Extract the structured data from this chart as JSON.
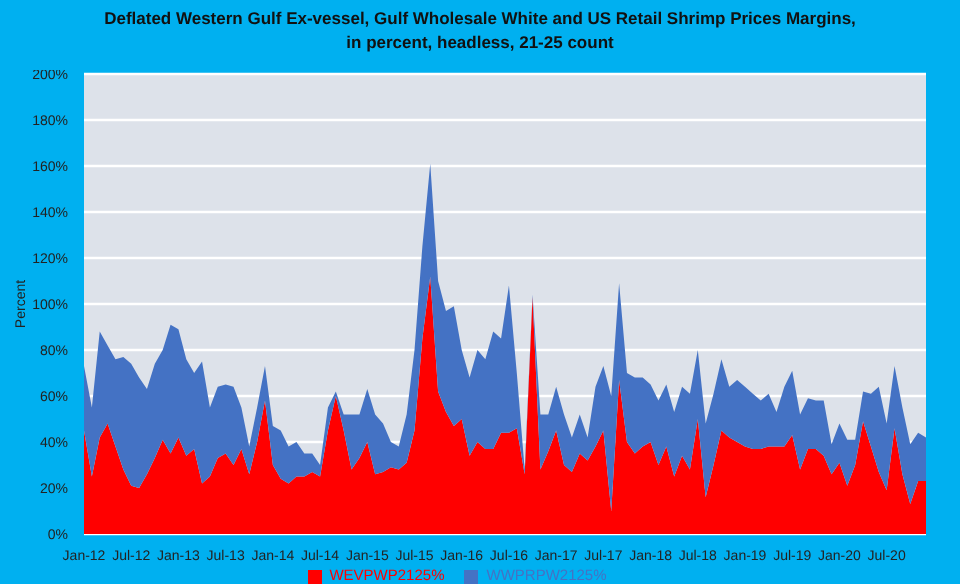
{
  "chart_data": {
    "type": "area",
    "title": "Deflated Western Gulf Ex-vessel, Gulf Wholesale White and US Retail Shrimp Prices Margins,\nin percent, headless, 21-25 count",
    "ylabel": "Percent",
    "categories": [
      "Jan-12",
      null,
      null,
      null,
      null,
      null,
      "Jul-12",
      null,
      null,
      null,
      null,
      null,
      "Jan-13",
      null,
      null,
      null,
      null,
      null,
      "Jul-13",
      null,
      null,
      null,
      null,
      null,
      "Jan-14",
      null,
      null,
      null,
      null,
      null,
      "Jul-14",
      null,
      null,
      null,
      null,
      null,
      "Jan-15",
      null,
      null,
      null,
      null,
      null,
      "Jul-15",
      null,
      null,
      null,
      null,
      null,
      "Jan-16",
      null,
      null,
      null,
      null,
      null,
      "Jul-16",
      null,
      null,
      null,
      null,
      null,
      "Jan-17",
      null,
      null,
      null,
      null,
      null,
      "Jul-17",
      null,
      null,
      null,
      null,
      null,
      "Jan-18",
      null,
      null,
      null,
      null,
      null,
      "Jul-18",
      null,
      null,
      null,
      null,
      null,
      "Jan-19",
      null,
      null,
      null,
      null,
      null,
      "Jul-19",
      null,
      null,
      null,
      null,
      null,
      "Jan-20",
      null,
      null,
      null,
      null,
      null,
      "Jul-20",
      null,
      null,
      null,
      null,
      null
    ],
    "stacked": true,
    "series": [
      {
        "name": "WEVPWP2125%",
        "color": "#ff0000",
        "values": [
          45,
          25,
          42,
          48,
          38,
          28,
          21,
          20,
          26,
          33,
          41,
          35,
          42,
          34,
          37,
          22,
          25,
          33,
          35,
          30,
          37,
          26,
          40,
          58,
          30,
          24,
          22,
          25,
          25,
          27,
          25,
          45,
          60,
          45,
          28,
          33,
          40,
          26,
          27,
          29,
          28,
          31,
          45,
          85,
          112,
          62,
          53,
          47,
          50,
          34,
          40,
          37,
          37,
          44,
          44,
          46,
          26,
          103,
          28,
          36,
          45,
          30,
          27,
          35,
          32,
          38,
          45,
          10,
          67,
          40,
          35,
          38,
          40,
          30,
          38,
          25,
          34,
          28,
          50,
          16,
          30,
          45,
          42,
          40,
          38,
          37,
          37,
          38,
          38,
          38,
          43,
          28,
          37,
          37,
          34,
          26,
          31,
          21,
          30,
          49,
          38,
          27,
          19,
          46,
          26,
          13,
          23,
          23
        ]
      },
      {
        "name": "WWPRPW2125%",
        "color": "#4472c4",
        "values": [
          28,
          30,
          46,
          34,
          38,
          49,
          53,
          48,
          37,
          41,
          39,
          56,
          47,
          42,
          33,
          53,
          30,
          31,
          30,
          34,
          18,
          12,
          15,
          15,
          17,
          21,
          16,
          15,
          10,
          8,
          5,
          10,
          2,
          7,
          24,
          19,
          23,
          26,
          21,
          11,
          10,
          21,
          35,
          40,
          49,
          48,
          44,
          52,
          30,
          34,
          40,
          39,
          51,
          41,
          64,
          24,
          2,
          1,
          24,
          16,
          19,
          22,
          15,
          17,
          10,
          26,
          28,
          50,
          42,
          30,
          33,
          30,
          25,
          28,
          27,
          28,
          30,
          33,
          30,
          32,
          31,
          31,
          22,
          27,
          26,
          24,
          21,
          23,
          15,
          26,
          28,
          24,
          22,
          21,
          24,
          13,
          17,
          20,
          11,
          13,
          23,
          37,
          29,
          27,
          29,
          26,
          21,
          19
        ]
      }
    ],
    "ylim": [
      0,
      200
    ],
    "yticks": [
      {
        "value": 0,
        "label": "0%"
      },
      {
        "value": 20,
        "label": "20%"
      },
      {
        "value": 40,
        "label": "40%"
      },
      {
        "value": 60,
        "label": "60%"
      },
      {
        "value": 80,
        "label": "80%"
      },
      {
        "value": 100,
        "label": "100%"
      },
      {
        "value": 120,
        "label": "120%"
      },
      {
        "value": 140,
        "label": "140%"
      },
      {
        "value": 160,
        "label": "160%"
      },
      {
        "value": 180,
        "label": "180%"
      },
      {
        "value": 200,
        "label": "200%"
      }
    ],
    "grid": "y",
    "legend": "bottom"
  }
}
